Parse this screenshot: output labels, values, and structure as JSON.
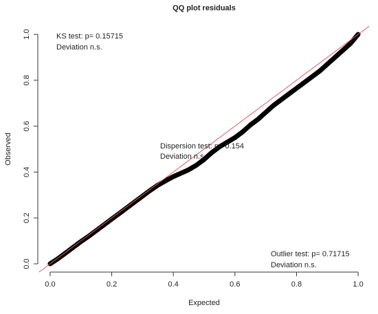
{
  "chart_data": {
    "type": "line",
    "title": "QQ plot residuals",
    "x_label": "Expected",
    "y_label": "Observed",
    "x": [
      0,
      0.025,
      0.05,
      0.075,
      0.1,
      0.125,
      0.15,
      0.175,
      0.2,
      0.225,
      0.25,
      0.275,
      0.3,
      0.325,
      0.35,
      0.375,
      0.4,
      0.425,
      0.45,
      0.475,
      0.5,
      0.525,
      0.55,
      0.575,
      0.6,
      0.625,
      0.65,
      0.675,
      0.7,
      0.725,
      0.75,
      0.775,
      0.8,
      0.825,
      0.85,
      0.875,
      0.9,
      0.925,
      0.95,
      0.975,
      1
    ],
    "values": [
      0,
      0.022,
      0.047,
      0.072,
      0.097,
      0.12,
      0.145,
      0.17,
      0.195,
      0.22,
      0.245,
      0.27,
      0.295,
      0.32,
      0.343,
      0.362,
      0.38,
      0.395,
      0.41,
      0.43,
      0.455,
      0.485,
      0.51,
      0.53,
      0.55,
      0.575,
      0.605,
      0.63,
      0.66,
      0.69,
      0.715,
      0.74,
      0.765,
      0.79,
      0.815,
      0.84,
      0.87,
      0.9,
      0.93,
      0.96,
      1
    ],
    "color": "#000000",
    "reference_line_color": "#e05a5a",
    "xlim": [
      -0.04,
      1.04
    ],
    "ylim": [
      -0.036,
      1.036
    ],
    "xticks": [
      {
        "value": 0,
        "label": "0.0"
      },
      0.2,
      0.4,
      0.6,
      0.8,
      {
        "value": 1,
        "label": "1.0"
      }
    ],
    "yticks": [
      {
        "value": 0,
        "label": "0.0"
      },
      0.2,
      0.4,
      0.6,
      0.8,
      {
        "value": 1,
        "label": "1.0"
      }
    ],
    "annotations": [
      "KS test: p= 0.15715",
      "Deviation  n.s.",
      "Dispersion test: p= 0.154",
      "Deviation  n.s.",
      "Outlier test: p= 0.71715",
      "Deviation  n.s."
    ]
  }
}
